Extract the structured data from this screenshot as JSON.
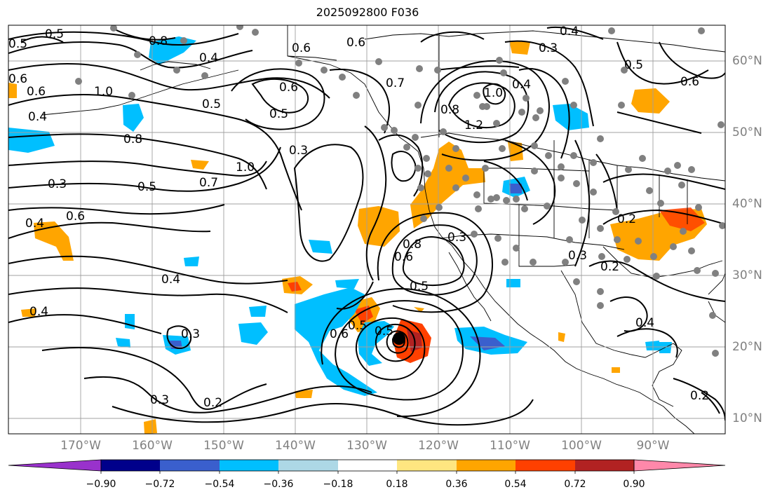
{
  "title": "2025092800 F036",
  "longitude_labels": [
    "170°W",
    "160°W",
    "150°W",
    "140°W",
    "130°W",
    "120°W",
    "110°W",
    "100°W",
    "90°W"
  ],
  "latitude_labels": [
    "60°N",
    "50°N",
    "40°N",
    "30°N",
    "20°N",
    "10°N"
  ],
  "contour_labels": [
    "0.5",
    "0.8",
    "0.6",
    "0.6",
    "0.4",
    "0.3",
    "0.4",
    "0.5",
    "1.0",
    "0.6",
    "0.5",
    "0.5",
    "0.8",
    "0.4",
    "0.8",
    "0.7",
    "1.0",
    "0.4",
    "1.2",
    "0.6",
    "1.0",
    "0.3",
    "0.7",
    "0.5",
    "0.3",
    "0.6",
    "0.4",
    "0.6",
    "0.8",
    "0.3",
    "0.6",
    "0.5",
    "0.4",
    "0.2",
    "0.3",
    "0.2",
    "0.3",
    "0.4",
    "0.6",
    "0.5",
    "0.5",
    "0.2",
    "0.3",
    "0.5",
    "0.6",
    "0.4",
    "0.2"
  ],
  "colorbar": {
    "ticks": [
      "−0.90",
      "−0.72",
      "−0.54",
      "−0.36",
      "−0.18",
      "0.18",
      "0.36",
      "0.54",
      "0.72",
      "0.90"
    ],
    "colors": [
      "#9932cc",
      "#00008b",
      "#3a5fcd",
      "#00bfff",
      "#add8e6",
      "#ffffff",
      "#ffe680",
      "#ffa500",
      "#ff4000",
      "#b22222",
      "#ff88aa"
    ]
  },
  "colors": {
    "land_border": "#000000",
    "grid": "#a0a0a0",
    "station_dots": "#808080",
    "label_text": "#808080"
  }
}
